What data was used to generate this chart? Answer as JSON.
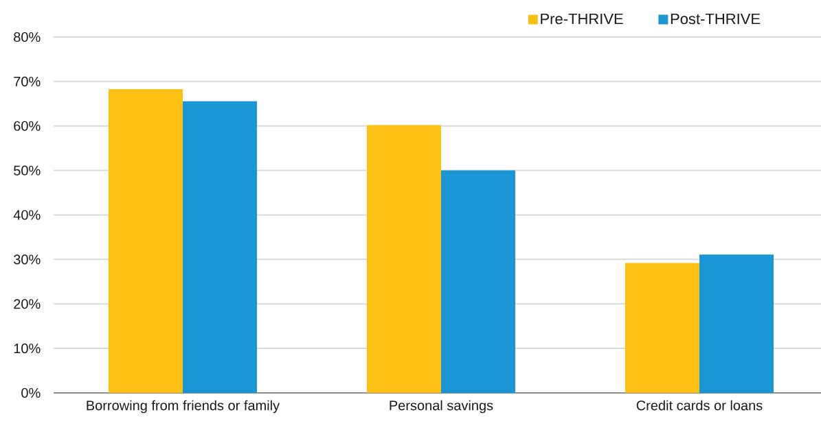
{
  "chart_data": {
    "type": "bar",
    "categories": [
      "Borrowing from friends or family",
      "Personal savings",
      "Credit cards or loans"
    ],
    "series": [
      {
        "name": "Pre-THRIVE",
        "color": "#fcbf14",
        "values": [
          68.3,
          60.2,
          29.2
        ]
      },
      {
        "name": "Post-THRIVE",
        "color": "#1996d3",
        "values": [
          65.6,
          50.0,
          31.1
        ]
      }
    ],
    "ylim": [
      0,
      80
    ],
    "yticks": [
      {
        "value": 0,
        "label": "0%"
      },
      {
        "value": 10,
        "label": "10%"
      },
      {
        "value": 20,
        "label": "20%"
      },
      {
        "value": 30,
        "label": "30%"
      },
      {
        "value": 40,
        "label": "40%"
      },
      {
        "value": 50,
        "label": "50%"
      },
      {
        "value": 60,
        "label": "60%"
      },
      {
        "value": 70,
        "label": "70%"
      },
      {
        "value": 80,
        "label": "80%"
      }
    ],
    "grid": "y",
    "legend": "top right"
  }
}
